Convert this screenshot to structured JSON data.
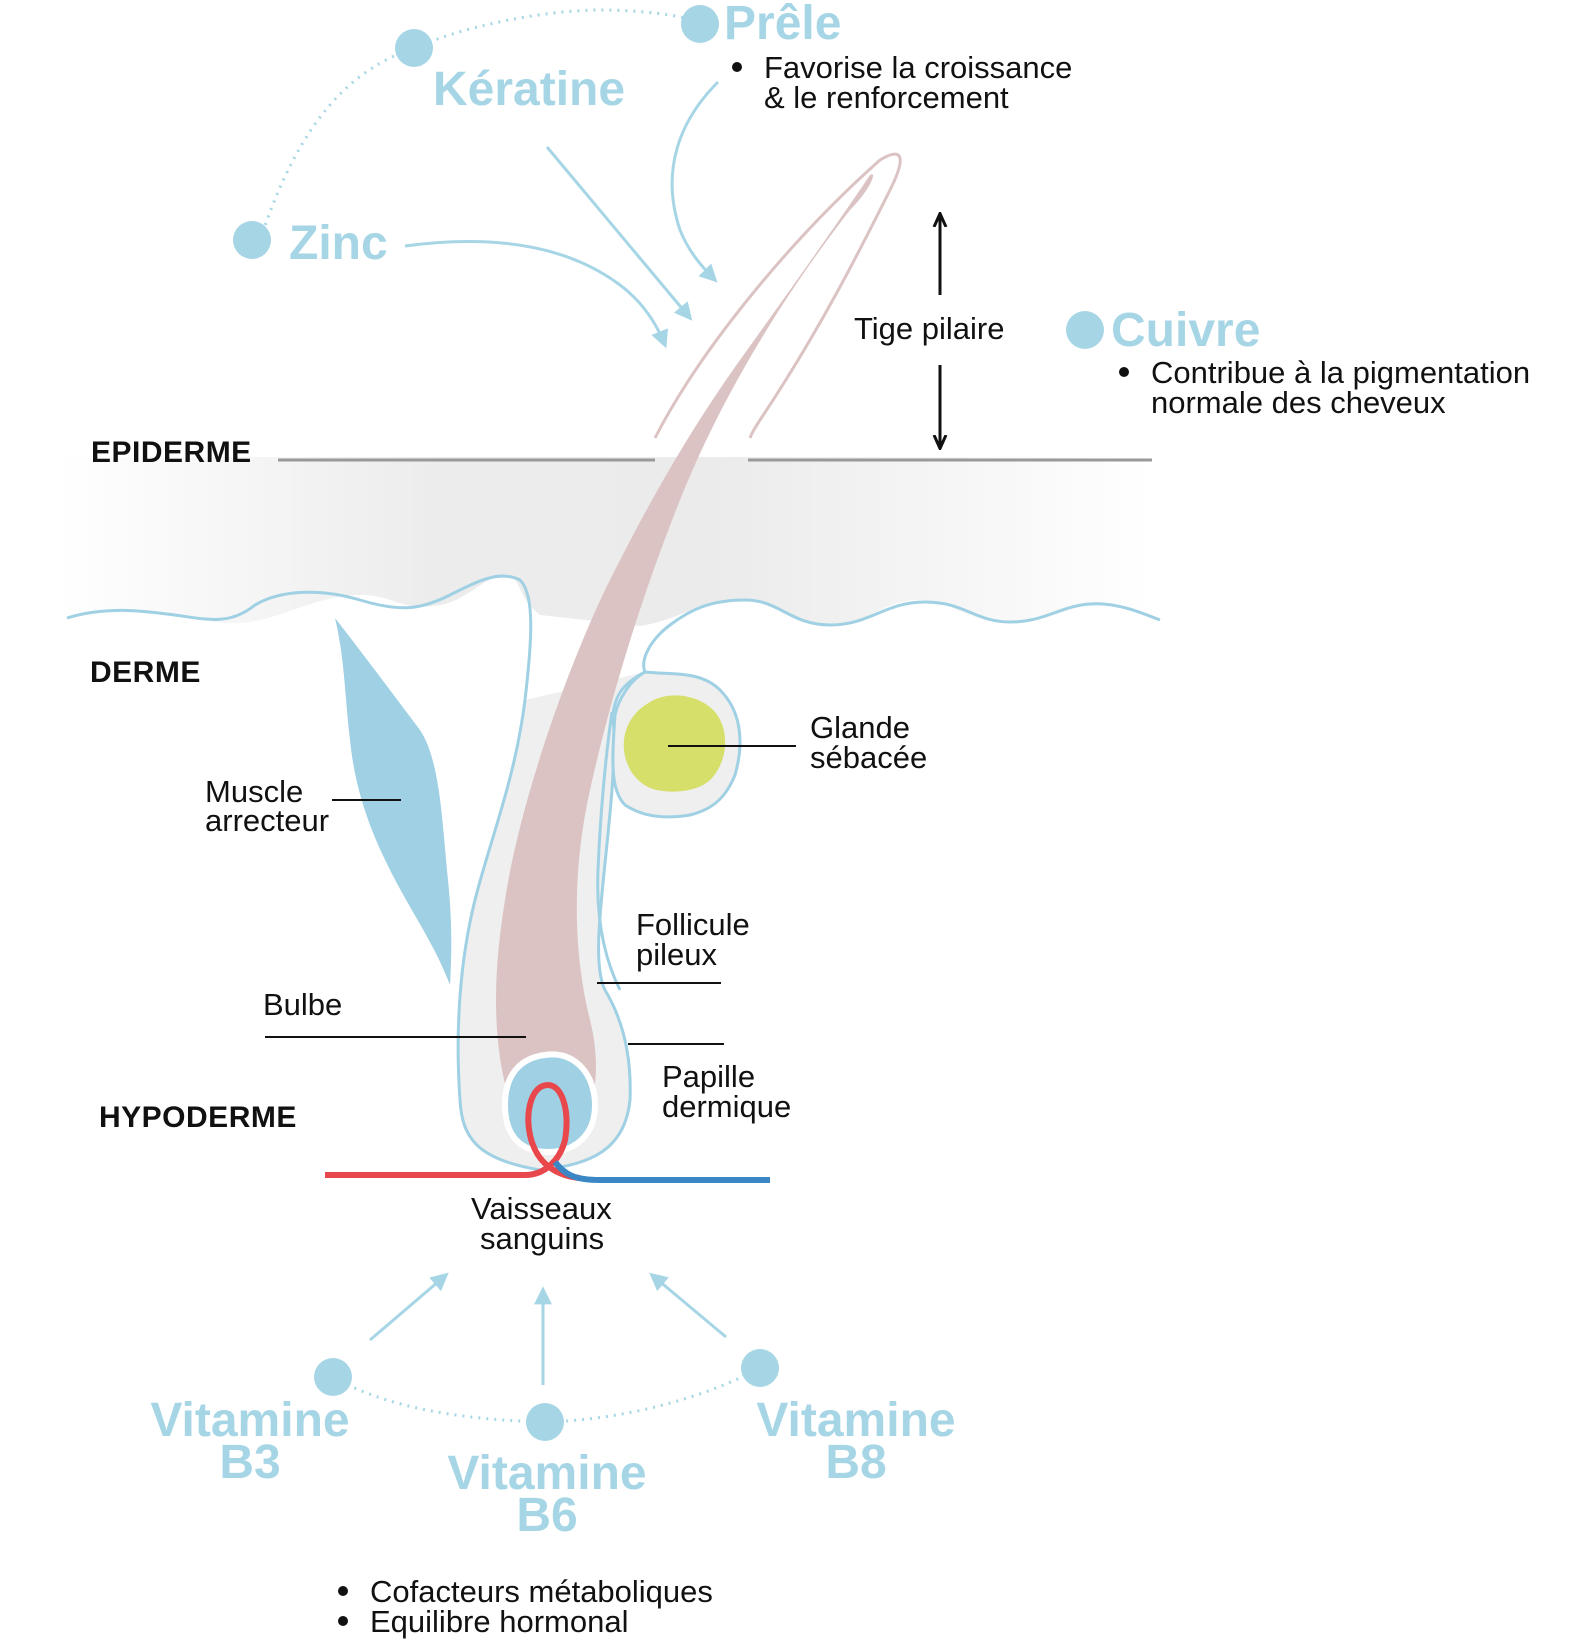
{
  "layers": {
    "epiderme": "EPIDERME",
    "derme": "DERME",
    "hypoderme": "HYPODERME"
  },
  "labels": {
    "tige": "Tige pilaire",
    "glande_1": "Glande",
    "glande_2": "sébacée",
    "muscle_1": "Muscle",
    "muscle_2": "arrecteur",
    "follicule_1": "Follicule",
    "follicule_2": "pileux",
    "bulbe": "Bulbe",
    "papille_1": "Papille",
    "papille_2": "dermique",
    "vaisseaux_1": "Vaisseaux",
    "vaisseaux_2": "sanguins"
  },
  "nutrients": {
    "prele": "Prêle",
    "prele_note_1": "Favorise la croissance",
    "prele_note_2": "& le renforcement",
    "keratine": "Kératine",
    "zinc": "Zinc",
    "cuivre": "Cuivre",
    "cuivre_note_1": "Contribue à la pigmentation",
    "cuivre_note_2": "normale des cheveux",
    "b3_1": "Vitamine",
    "b3_2": "B3",
    "b6_1": "Vitamine",
    "b6_2": "B6",
    "b8_1": "Vitamine",
    "b8_2": "B8",
    "vit_note_1": "Cofacteurs métaboliques",
    "vit_note_2": "Equilibre hormonal"
  },
  "colors": {
    "nutrient_blue": "#a6d6e6",
    "muscle_blue": "#9fd0e3",
    "outline_blue": "#9fd0e3",
    "hair_pink": "#dcc3c3",
    "gland_green": "#d6df6a",
    "artery_red": "#e8474c",
    "vein_blue": "#3b86c4",
    "surface_gray": "#999999"
  }
}
